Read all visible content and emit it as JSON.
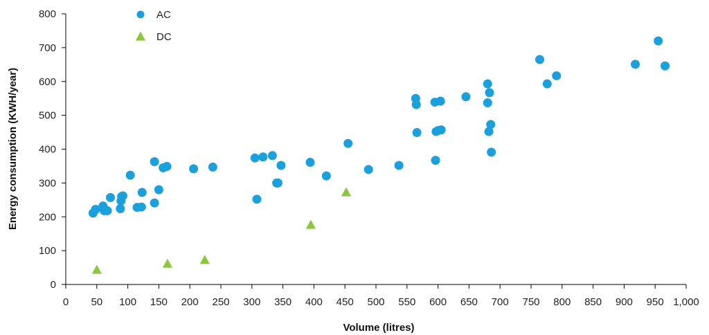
{
  "chart_data": {
    "type": "scatter",
    "title": "",
    "xlabel": "Volume (litres)",
    "ylabel": "Energy consumption (KWH/year)",
    "xlim": [
      0,
      1000
    ],
    "ylim": [
      0,
      800
    ],
    "x_ticks": [
      "0",
      "50",
      "100",
      "150",
      "200",
      "250",
      "300",
      "350",
      "400",
      "450",
      "500",
      "550",
      "600",
      "650",
      "700",
      "750",
      "800",
      "850",
      "900",
      "950",
      "1,000"
    ],
    "y_ticks": [
      "0",
      "100",
      "200",
      "300",
      "400",
      "500",
      "600",
      "700",
      "800"
    ],
    "grid": false,
    "legend_position": "top-left",
    "series": [
      {
        "name": "AC",
        "marker": "circle",
        "color": "#1aa0dc",
        "points": [
          [
            44,
            211
          ],
          [
            48,
            222
          ],
          [
            60,
            232
          ],
          [
            62,
            218
          ],
          [
            67,
            218
          ],
          [
            72,
            257
          ],
          [
            88,
            224
          ],
          [
            89,
            247
          ],
          [
            90,
            260
          ],
          [
            92,
            262
          ],
          [
            104,
            323
          ],
          [
            115,
            228
          ],
          [
            122,
            229
          ],
          [
            123,
            272
          ],
          [
            143,
            241
          ],
          [
            143,
            363
          ],
          [
            150,
            280
          ],
          [
            157,
            345
          ],
          [
            163,
            349
          ],
          [
            206,
            342
          ],
          [
            237,
            347
          ],
          [
            305,
            374
          ],
          [
            308,
            252
          ],
          [
            318,
            377
          ],
          [
            333,
            381
          ],
          [
            340,
            300
          ],
          [
            342,
            300
          ],
          [
            347,
            352
          ],
          [
            394,
            361
          ],
          [
            420,
            321
          ],
          [
            455,
            417
          ],
          [
            488,
            340
          ],
          [
            537,
            352
          ],
          [
            564,
            550
          ],
          [
            565,
            532
          ],
          [
            566,
            449
          ],
          [
            595,
            539
          ],
          [
            596,
            367
          ],
          [
            597,
            452
          ],
          [
            600,
            455
          ],
          [
            604,
            542
          ],
          [
            605,
            457
          ],
          [
            645,
            555
          ],
          [
            680,
            593
          ],
          [
            680,
            537
          ],
          [
            682,
            452
          ],
          [
            683,
            567
          ],
          [
            685,
            473
          ],
          [
            686,
            391
          ],
          [
            764,
            665
          ],
          [
            776,
            593
          ],
          [
            791,
            617
          ],
          [
            918,
            651
          ],
          [
            955,
            720
          ],
          [
            966,
            646
          ]
        ]
      },
      {
        "name": "DC",
        "marker": "triangle",
        "color": "#8dc63f",
        "points": [
          [
            50,
            43
          ],
          [
            164,
            61
          ],
          [
            224,
            72
          ],
          [
            395,
            176
          ],
          [
            452,
            272
          ]
        ]
      }
    ]
  }
}
